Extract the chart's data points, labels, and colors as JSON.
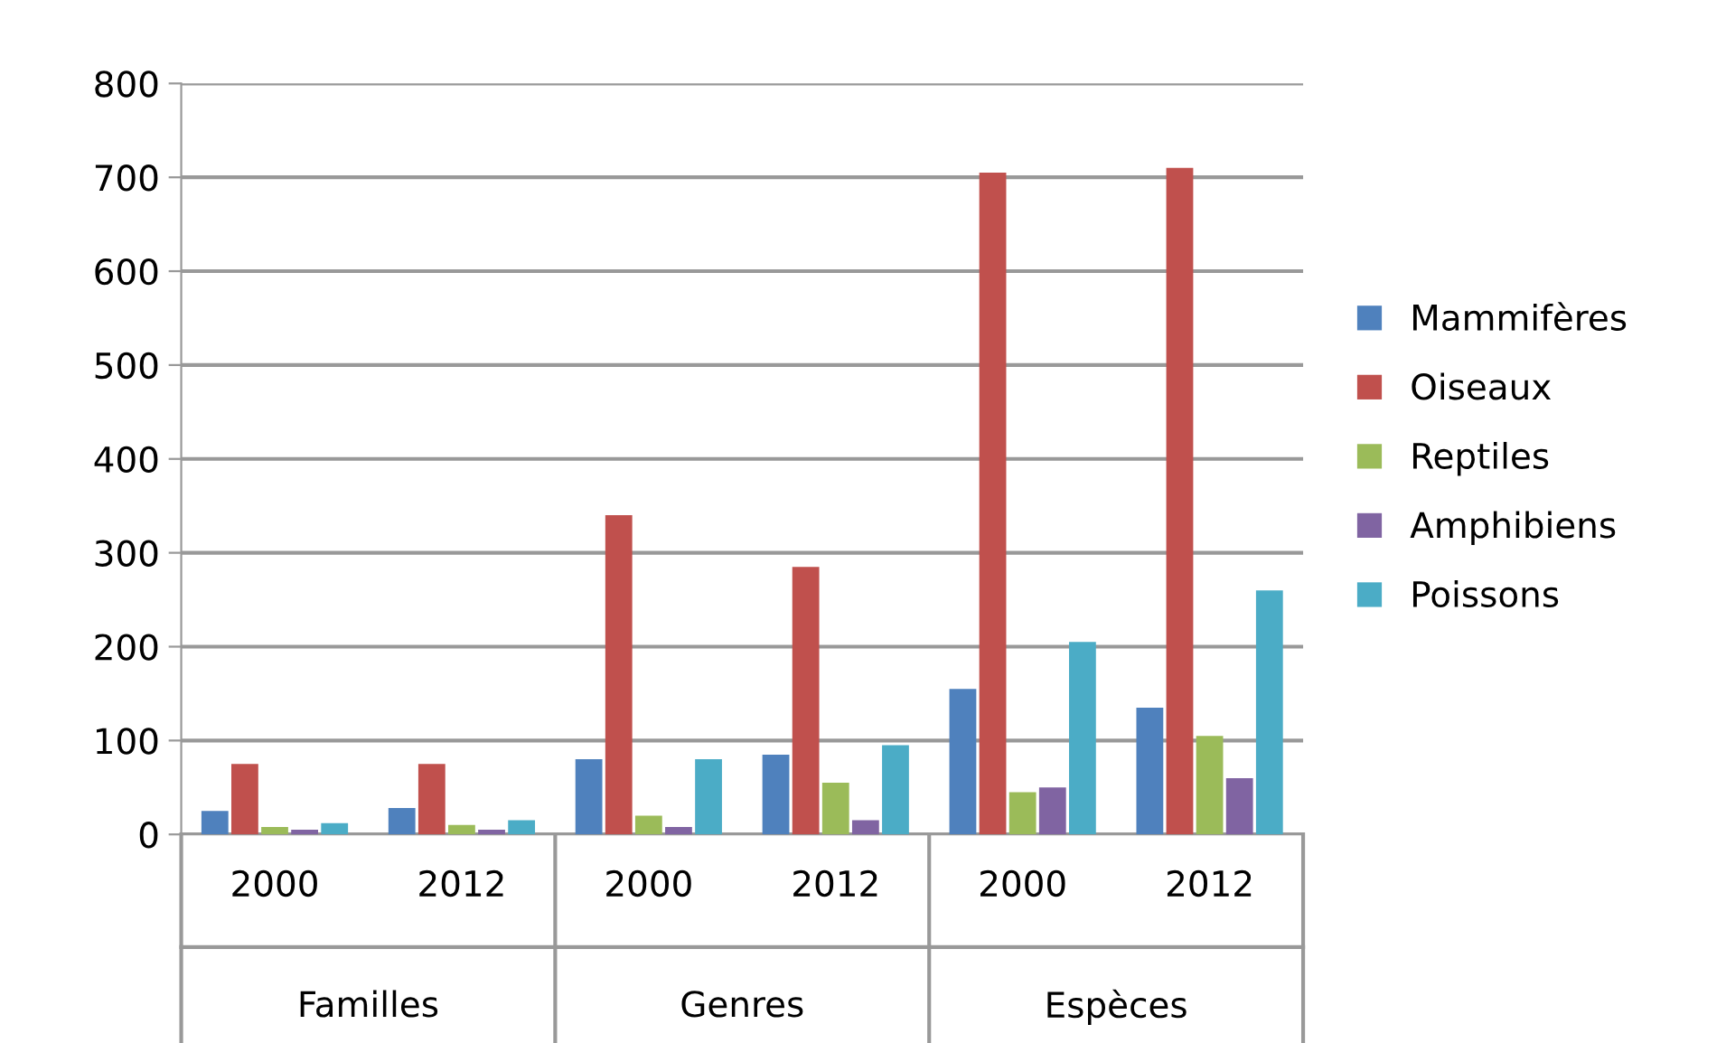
{
  "chart_data": {
    "type": "bar",
    "categories": [
      "2000",
      "2012",
      "2000",
      "2012",
      "2000",
      "2012"
    ],
    "annotations": [
      "Familles",
      "Genres",
      "Espèces"
    ],
    "series": [
      {
        "name": "Mammifères",
        "color": "#4f81bd",
        "values": [
          25,
          28,
          80,
          85,
          155,
          135
        ]
      },
      {
        "name": "Oiseaux",
        "color": "#c0504d",
        "values": [
          75,
          75,
          340,
          285,
          705,
          710
        ]
      },
      {
        "name": "Reptiles",
        "color": "#9bbb59",
        "values": [
          8,
          10,
          20,
          55,
          45,
          105
        ]
      },
      {
        "name": "Amphibiens",
        "color": "#8064a2",
        "values": [
          5,
          5,
          8,
          15,
          50,
          60
        ]
      },
      {
        "name": "Poissons",
        "color": "#4bacc6",
        "values": [
          12,
          15,
          80,
          95,
          205,
          260
        ]
      }
    ],
    "ylim": [
      0,
      800
    ],
    "yticks": [
      0,
      100,
      200,
      300,
      400,
      500,
      600,
      700,
      800
    ],
    "grid": "y",
    "legend": "right"
  }
}
